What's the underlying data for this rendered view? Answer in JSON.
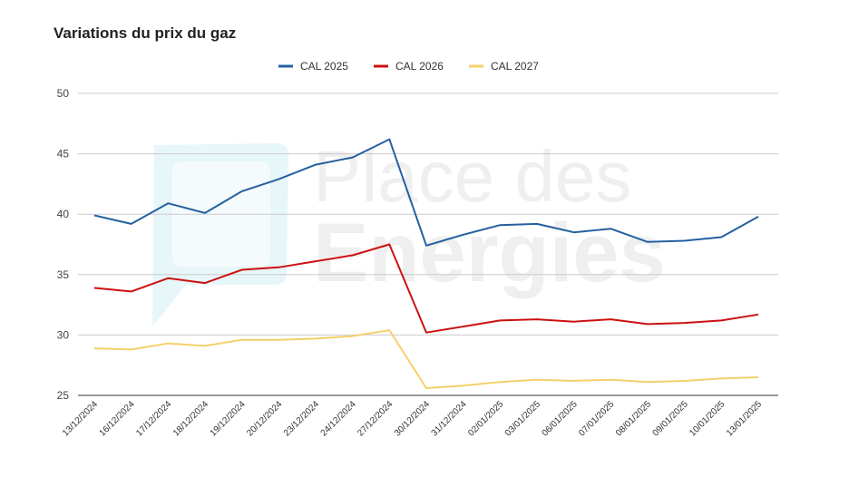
{
  "chart_data": {
    "type": "line",
    "title": "Variations du prix du gaz",
    "xlabel": "",
    "ylabel": "",
    "ylim": [
      25,
      50
    ],
    "yticks": [
      25,
      30,
      35,
      40,
      45,
      50
    ],
    "grid": true,
    "legend_position": "top-center",
    "watermark": [
      "Place des",
      "Energies"
    ],
    "categories": [
      "13/12/2024",
      "16/12/2024",
      "17/12/2024",
      "18/12/2024",
      "19/12/2024",
      "20/12/2024",
      "23/12/2024",
      "24/12/2024",
      "27/12/2024",
      "30/12/2024",
      "31/12/2024",
      "02/01/2025",
      "03/01/2025",
      "06/01/2025",
      "07/01/2025",
      "08/01/2025",
      "09/01/2025",
      "10/01/2025",
      "13/01/2025"
    ],
    "series": [
      {
        "name": "CAL 2025",
        "color": "#2460a0",
        "values": [
          39.9,
          39.2,
          40.9,
          40.1,
          41.9,
          42.9,
          44.1,
          44.7,
          46.2,
          37.4,
          38.3,
          39.1,
          39.2,
          38.5,
          38.8,
          37.7,
          37.8,
          38.1,
          39.8
        ]
      },
      {
        "name": "CAL 2026",
        "color": "#cc1111",
        "values": [
          33.9,
          33.6,
          34.7,
          34.3,
          35.4,
          35.6,
          36.1,
          36.6,
          37.5,
          30.2,
          30.7,
          31.2,
          31.3,
          31.1,
          31.3,
          30.9,
          31.0,
          31.2,
          31.7
        ]
      },
      {
        "name": "CAL 2027",
        "color": "#f5d06a",
        "values": [
          28.9,
          28.8,
          29.3,
          29.1,
          29.6,
          29.6,
          29.7,
          29.9,
          30.4,
          25.6,
          25.8,
          26.1,
          26.3,
          26.2,
          26.3,
          26.1,
          26.2,
          26.4,
          26.5
        ]
      }
    ]
  }
}
